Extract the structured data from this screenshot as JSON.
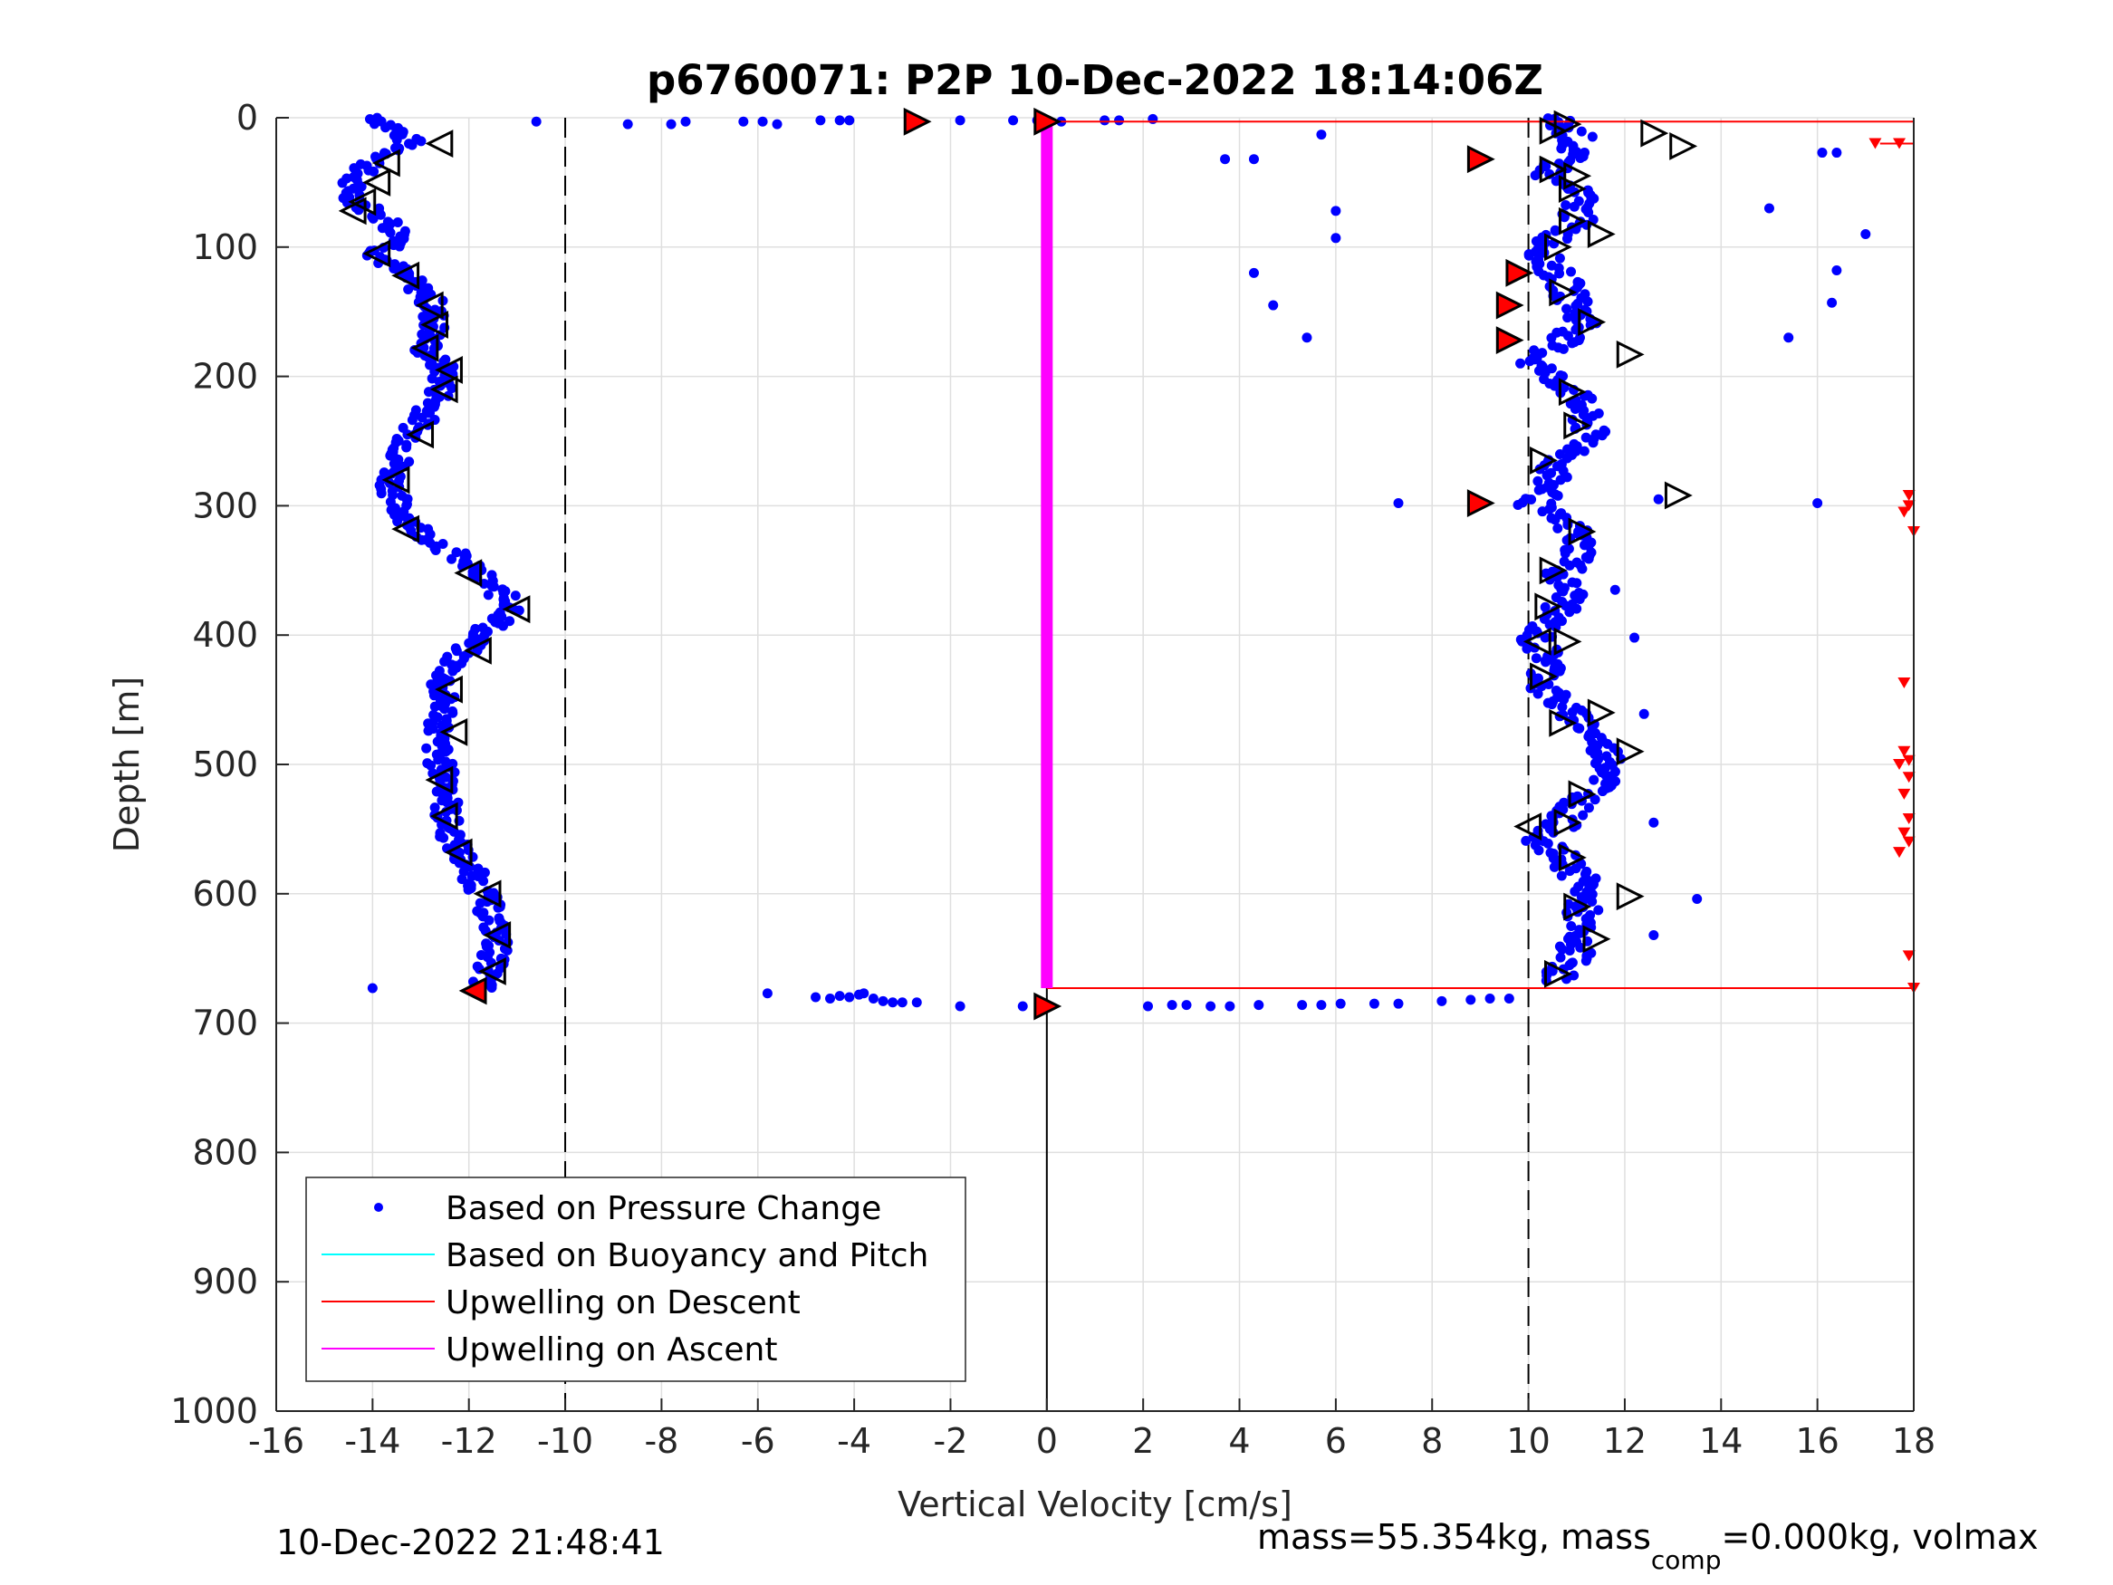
{
  "chart_data": {
    "type": "scatter",
    "title": "p6760071: P2P 10-Dec-2022 18:14:06Z",
    "xlabel": "Vertical Velocity [cm/s]",
    "ylabel": "Depth [m]",
    "xlim": [
      -16,
      18
    ],
    "ylim": [
      0,
      1000
    ],
    "y_reversed": true,
    "grid": true,
    "x_ticks": [
      -16,
      -14,
      -12,
      -10,
      -8,
      -6,
      -4,
      -2,
      0,
      2,
      4,
      6,
      8,
      10,
      12,
      14,
      16,
      18
    ],
    "y_ticks": [
      0,
      100,
      200,
      300,
      400,
      500,
      600,
      700,
      800,
      900,
      1000
    ],
    "reference_lines_x": [
      -10,
      10
    ],
    "legend_position": "bottom-left",
    "legend": [
      {
        "label": "Based on Pressure Change",
        "color": "#0000ff",
        "marker": "dot"
      },
      {
        "label": "Based on Buoyancy and Pitch",
        "color": "#00ffff",
        "marker": "line"
      },
      {
        "label": "Upwelling on Descent",
        "color": "#ff0000",
        "marker": "line"
      },
      {
        "label": "Upwelling on Ascent",
        "color": "#ff00ff",
        "marker": "line"
      }
    ],
    "series": [
      {
        "name": "Based on Pressure Change",
        "style": "dots",
        "color": "#0000ff",
        "descent_profile": [
          [
            -13.9,
            0
          ],
          [
            -13.5,
            10
          ],
          [
            -13.2,
            20
          ],
          [
            -14.0,
            35
          ],
          [
            -14.5,
            50
          ],
          [
            -14.3,
            65
          ],
          [
            -13.7,
            80
          ],
          [
            -13.3,
            95
          ],
          [
            -13.9,
            105
          ],
          [
            -13.4,
            120
          ],
          [
            -12.8,
            140
          ],
          [
            -12.7,
            160
          ],
          [
            -12.9,
            180
          ],
          [
            -12.5,
            195
          ],
          [
            -12.6,
            215
          ],
          [
            -13.1,
            240
          ],
          [
            -13.4,
            260
          ],
          [
            -13.6,
            280
          ],
          [
            -13.5,
            300
          ],
          [
            -13.0,
            320
          ],
          [
            -12.2,
            340
          ],
          [
            -11.6,
            360
          ],
          [
            -11.0,
            380
          ],
          [
            -11.8,
            400
          ],
          [
            -12.3,
            420
          ],
          [
            -12.6,
            440
          ],
          [
            -12.5,
            460
          ],
          [
            -12.7,
            480
          ],
          [
            -12.6,
            500
          ],
          [
            -12.4,
            520
          ],
          [
            -12.5,
            540
          ],
          [
            -12.3,
            560
          ],
          [
            -12.0,
            580
          ],
          [
            -11.7,
            600
          ],
          [
            -11.5,
            620
          ],
          [
            -11.4,
            640
          ],
          [
            -11.6,
            660
          ],
          [
            -11.8,
            675
          ]
        ],
        "ascent_profile": [
          [
            10.5,
            0
          ],
          [
            11.0,
            15
          ],
          [
            10.8,
            30
          ],
          [
            10.4,
            45
          ],
          [
            11.1,
            60
          ],
          [
            11.0,
            80
          ],
          [
            10.5,
            95
          ],
          [
            10.3,
            110
          ],
          [
            10.7,
            125
          ],
          [
            10.9,
            140
          ],
          [
            11.2,
            160
          ],
          [
            10.6,
            175
          ],
          [
            10.1,
            190
          ],
          [
            10.9,
            210
          ],
          [
            11.2,
            235
          ],
          [
            11.3,
            250
          ],
          [
            10.5,
            270
          ],
          [
            10.4,
            290
          ],
          [
            10.1,
            300
          ],
          [
            11.0,
            320
          ],
          [
            11.1,
            340
          ],
          [
            10.6,
            355
          ],
          [
            10.9,
            370
          ],
          [
            10.4,
            390
          ],
          [
            10.1,
            405
          ],
          [
            10.5,
            420
          ],
          [
            10.3,
            440
          ],
          [
            10.7,
            455
          ],
          [
            11.2,
            470
          ],
          [
            11.6,
            490
          ],
          [
            11.8,
            505
          ],
          [
            11.4,
            520
          ],
          [
            10.9,
            535
          ],
          [
            10.6,
            550
          ],
          [
            10.2,
            560
          ],
          [
            10.8,
            575
          ],
          [
            11.2,
            595
          ],
          [
            11.1,
            615
          ],
          [
            10.9,
            635
          ],
          [
            11.0,
            650
          ],
          [
            10.5,
            668
          ]
        ],
        "surface_points": [
          [
            -10.6,
            3
          ],
          [
            -8.7,
            5
          ],
          [
            -7.8,
            5
          ],
          [
            -7.5,
            3
          ],
          [
            -6.3,
            3
          ],
          [
            -5.9,
            3
          ],
          [
            -5.6,
            5
          ],
          [
            -4.7,
            2
          ],
          [
            -4.3,
            2
          ],
          [
            -4.1,
            2
          ],
          [
            -1.8,
            2
          ],
          [
            -0.7,
            2
          ],
          [
            -0.2,
            2
          ],
          [
            0.3,
            3
          ],
          [
            1.2,
            2
          ],
          [
            1.5,
            2
          ],
          [
            2.2,
            1
          ]
        ],
        "bottom_points": [
          [
            -14.0,
            673
          ],
          [
            -5.8,
            677
          ],
          [
            -4.8,
            680
          ],
          [
            -4.5,
            681
          ],
          [
            -4.3,
            679
          ],
          [
            -4.1,
            680
          ],
          [
            -3.9,
            678
          ],
          [
            -3.8,
            677
          ],
          [
            -3.6,
            681
          ],
          [
            -3.4,
            683
          ],
          [
            -3.2,
            684
          ],
          [
            -3.0,
            684
          ],
          [
            -2.7,
            684
          ],
          [
            -1.8,
            687
          ],
          [
            -0.5,
            687
          ],
          [
            2.1,
            687
          ],
          [
            2.6,
            686
          ],
          [
            2.9,
            686
          ],
          [
            3.4,
            687
          ],
          [
            3.8,
            687
          ],
          [
            4.4,
            686
          ],
          [
            5.3,
            686
          ],
          [
            5.7,
            686
          ],
          [
            6.1,
            685
          ],
          [
            6.8,
            685
          ],
          [
            7.3,
            685
          ],
          [
            8.2,
            683
          ],
          [
            8.8,
            682
          ],
          [
            9.2,
            681
          ],
          [
            9.6,
            681
          ]
        ],
        "outliers": [
          [
            3.7,
            32
          ],
          [
            4.3,
            32
          ],
          [
            4.3,
            120
          ],
          [
            4.7,
            145
          ],
          [
            5.4,
            170
          ],
          [
            5.7,
            13
          ],
          [
            6.0,
            72
          ],
          [
            6.0,
            93
          ],
          [
            7.3,
            298
          ],
          [
            12.4,
            461
          ],
          [
            12.2,
            402
          ],
          [
            12.6,
            545
          ],
          [
            12.6,
            632
          ],
          [
            13.5,
            604
          ],
          [
            15.0,
            70
          ],
          [
            15.4,
            170
          ],
          [
            16.0,
            298
          ],
          [
            16.1,
            27
          ],
          [
            16.4,
            27
          ],
          [
            16.4,
            118
          ],
          [
            16.3,
            143
          ],
          [
            17.0,
            90
          ],
          [
            11.8,
            365
          ],
          [
            12.7,
            295
          ]
        ]
      },
      {
        "name": "Based on Buoyancy and Pitch",
        "style": "line",
        "color": "#00ffff",
        "points": []
      },
      {
        "name": "Upwelling on Descent",
        "style": "line-and-markers",
        "color": "#ff0000",
        "line_top": {
          "depth": 3,
          "x_from": 0,
          "x_to": 18
        },
        "line_bottom": {
          "depth": 673,
          "x_from": 0,
          "x_to": 18
        },
        "short_segment": {
          "depth": 20,
          "x_from": 17.3,
          "x_to": 18
        },
        "edge_markers": [
          [
            17.2,
            20
          ],
          [
            17.7,
            20
          ],
          [
            17.9,
            292
          ],
          [
            17.9,
            300
          ],
          [
            17.8,
            305
          ],
          [
            18.0,
            320
          ],
          [
            17.8,
            437
          ],
          [
            17.8,
            490
          ],
          [
            17.9,
            497
          ],
          [
            17.7,
            500
          ],
          [
            17.9,
            510
          ],
          [
            17.8,
            523
          ],
          [
            17.9,
            542
          ],
          [
            17.8,
            553
          ],
          [
            17.9,
            560
          ],
          [
            17.7,
            568
          ],
          [
            17.9,
            648
          ],
          [
            18.0,
            673
          ]
        ]
      },
      {
        "name": "Upwelling on Ascent",
        "style": "thick-line",
        "color": "#ff00ff",
        "x": 0,
        "depth_range": [
          3,
          673
        ]
      },
      {
        "name": "Direction Markers",
        "style": "triangles",
        "descent_left_open": [
          [
            -12.6,
            20
          ],
          [
            -13.7,
            35
          ],
          [
            -13.9,
            50
          ],
          [
            -14.2,
            65
          ],
          [
            -14.4,
            72
          ],
          [
            -13.9,
            105
          ],
          [
            -13.3,
            122
          ],
          [
            -12.8,
            145
          ],
          [
            -12.7,
            160
          ],
          [
            -12.9,
            178
          ],
          [
            -12.4,
            195
          ],
          [
            -12.5,
            210
          ],
          [
            -13.0,
            245
          ],
          [
            -13.5,
            280
          ],
          [
            -13.3,
            318
          ],
          [
            -12.0,
            352
          ],
          [
            -11.0,
            380
          ],
          [
            -11.8,
            412
          ],
          [
            -12.4,
            442
          ],
          [
            -12.3,
            475
          ],
          [
            -12.6,
            512
          ],
          [
            -12.5,
            540
          ],
          [
            -12.2,
            568
          ],
          [
            -11.6,
            600
          ],
          [
            -11.4,
            632
          ],
          [
            -11.5,
            660
          ]
        ],
        "descent_red": [
          [
            -11.9,
            675
          ]
        ],
        "ascent_right_open": [
          [
            10.8,
            5
          ],
          [
            10.5,
            10
          ],
          [
            12.6,
            12
          ],
          [
            13.2,
            22
          ],
          [
            10.5,
            40
          ],
          [
            11.0,
            45
          ],
          [
            10.9,
            55
          ],
          [
            10.9,
            80
          ],
          [
            11.5,
            90
          ],
          [
            10.6,
            100
          ],
          [
            10.7,
            135
          ],
          [
            11.3,
            158
          ],
          [
            12.1,
            183
          ],
          [
            10.9,
            212
          ],
          [
            11.0,
            238
          ],
          [
            10.3,
            265
          ],
          [
            13.1,
            292
          ],
          [
            11.1,
            320
          ],
          [
            10.5,
            350
          ],
          [
            10.4,
            378
          ],
          [
            10.8,
            405
          ],
          [
            10.3,
            432
          ],
          [
            11.5,
            460
          ],
          [
            10.7,
            468
          ],
          [
            12.1,
            490
          ],
          [
            11.1,
            523
          ],
          [
            10.8,
            545
          ],
          [
            10.9,
            572
          ],
          [
            12.1,
            602
          ],
          [
            11.0,
            610
          ],
          [
            11.4,
            635
          ],
          [
            10.6,
            662
          ]
        ],
        "ascent_left_open": [
          [
            10.0,
            548
          ],
          [
            10.2,
            405
          ]
        ],
        "ascent_red": [
          [
            9.0,
            32
          ],
          [
            9.8,
            120
          ],
          [
            9.6,
            145
          ],
          [
            9.6,
            172
          ],
          [
            9.0,
            298
          ],
          [
            -2.7,
            3
          ],
          [
            0.0,
            3
          ],
          [
            0.0,
            687
          ]
        ]
      }
    ],
    "vertical_line": {
      "x": 0,
      "depth_from": 673,
      "depth_to": 1000,
      "color": "#000000"
    }
  },
  "footer": {
    "timestamp": "10-Dec-2022 21:48:41",
    "mass_text_1": "mass=55.354kg, mass",
    "mass_sub": "comp",
    "mass_text_2": "=0.000kg, volmax"
  }
}
